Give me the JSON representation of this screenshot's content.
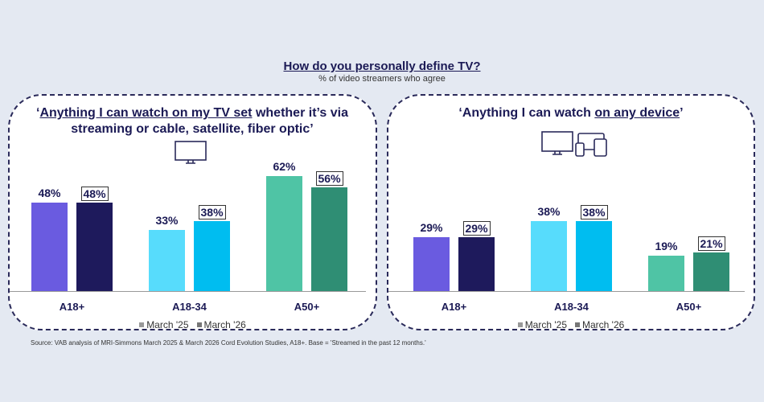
{
  "title": "How do you personally define TV?",
  "subtitle": "%  of video streamers who agree",
  "source": "Source: VAB analysis of MRI-Simmons March 2025 & March 2026 Cord Evolution Studies, A18+. Base = 'Streamed in the past 12 months.'",
  "chart_data": [
    {
      "type": "bar",
      "title_parts": [
        "‘",
        "Anything I can watch on my TV set",
        " whether it’s via streaming or cable, satellite, fiber optic’"
      ],
      "icon": "tv-icon",
      "categories": [
        "A18+",
        "A18-34",
        "A50+"
      ],
      "series": [
        {
          "name": "March '25",
          "values": [
            48,
            33,
            62
          ],
          "colors": [
            "#6a5be0",
            "#57dcfc",
            "#4fc4a5"
          ]
        },
        {
          "name": "March '26",
          "values": [
            48,
            38,
            56
          ],
          "colors": [
            "#1e1a5c",
            "#00bdf0",
            "#2f8e74"
          ]
        }
      ],
      "value_suffix": "%",
      "ylim": [
        0,
        100
      ],
      "legend": "bottom"
    },
    {
      "type": "bar",
      "title_parts": [
        "‘Anything I can watch ",
        "on any device",
        "’"
      ],
      "icon": "devices-icon",
      "categories": [
        "A18+",
        "A18-34",
        "A50+"
      ],
      "series": [
        {
          "name": "March '25",
          "values": [
            29,
            38,
            19
          ],
          "colors": [
            "#6a5be0",
            "#57dcfc",
            "#4fc4a5"
          ]
        },
        {
          "name": "March '26",
          "values": [
            29,
            38,
            21
          ],
          "colors": [
            "#1e1a5c",
            "#00bdf0",
            "#2f8e74"
          ]
        }
      ],
      "value_suffix": "%",
      "ylim": [
        0,
        100
      ],
      "legend": "bottom"
    }
  ]
}
